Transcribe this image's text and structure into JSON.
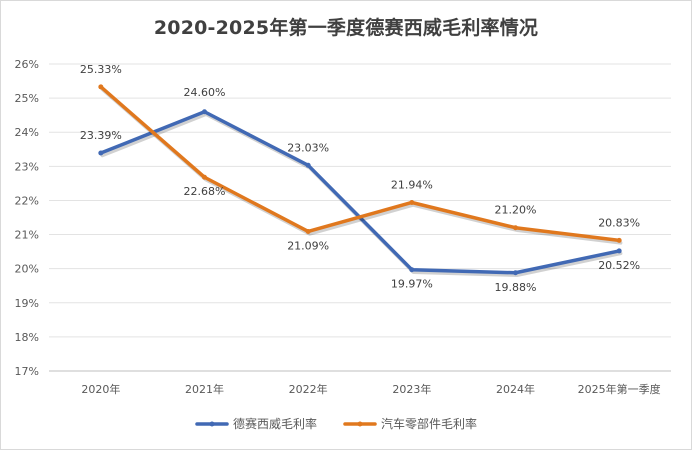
{
  "chart_data": {
    "type": "line",
    "title": "2020-2025年第一季度德赛西威毛利率情况",
    "categories": [
      "2020年",
      "2021年",
      "2022年",
      "2023年",
      "2024年",
      "2025年第一季度"
    ],
    "yticks": [
      "17%",
      "18%",
      "19%",
      "20%",
      "21%",
      "22%",
      "23%",
      "24%",
      "25%",
      "26%"
    ],
    "ylim": [
      17,
      26
    ],
    "grid": true,
    "legend_position": "bottom",
    "series": [
      {
        "name": "德赛西威毛利率",
        "color": "#4169b4",
        "values": [
          23.39,
          24.6,
          23.03,
          19.97,
          19.88,
          20.52
        ],
        "labels": [
          "23.39%",
          "24.60%",
          "23.03%",
          "19.97%",
          "19.88%",
          "20.52%"
        ]
      },
      {
        "name": "汽车零部件毛利率",
        "color": "#e0781e",
        "values": [
          25.33,
          22.68,
          21.09,
          21.94,
          21.2,
          20.83
        ],
        "labels": [
          "25.33%",
          "22.68%",
          "21.09%",
          "21.94%",
          "21.20%",
          "20.83%"
        ]
      }
    ]
  }
}
